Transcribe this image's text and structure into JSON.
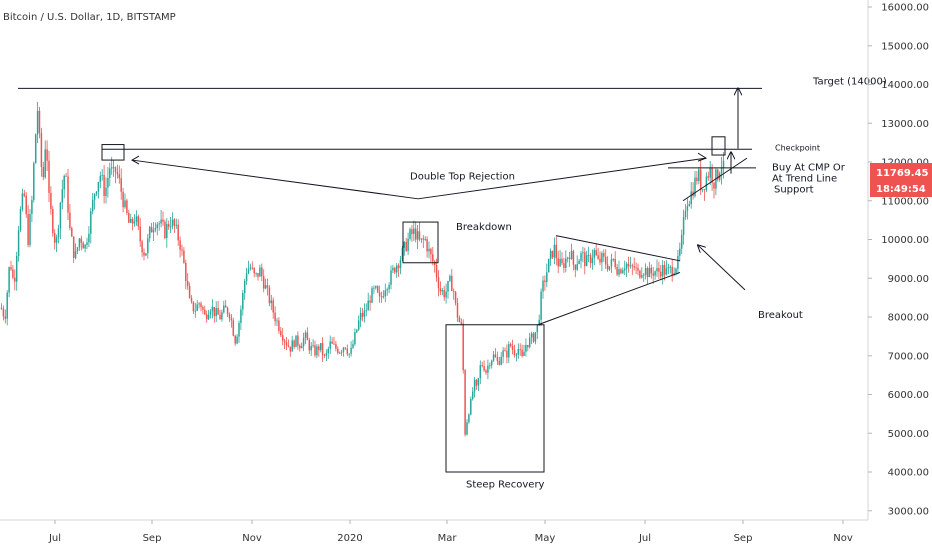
{
  "chart_data": {
    "type": "candlestick",
    "title": "Bitcoin / U.S. Dollar, 1D, BITSTAMP",
    "xlabel": "",
    "ylabel": "",
    "ylim": [
      2600,
      16400
    ],
    "x_ticks": [
      "Jul",
      "Sep",
      "Nov",
      "2020",
      "Mar",
      "May",
      "Jul",
      "Sep",
      "Nov"
    ],
    "y_ticks": [
      "16000.00",
      "15000.00",
      "14000.00",
      "13000.00",
      "12000.00",
      "11000.00",
      "10000.00",
      "9000.00",
      "8000.00",
      "7000.00",
      "6000.00",
      "5000.00",
      "4000.00",
      "3000.00"
    ],
    "y_tick_values": [
      16000,
      15000,
      14000,
      13000,
      12000,
      11000,
      10000,
      9000,
      8000,
      7000,
      6000,
      5000,
      4000,
      3000
    ],
    "up_color": "#26a69a",
    "down_color": "#ef5350",
    "last_price": "11769.45",
    "countdown": "18:49:54",
    "price_tag_color": "#ef5350",
    "path": [
      [
        0,
        8300
      ],
      [
        5,
        8000
      ],
      [
        10,
        9500
      ],
      [
        14,
        8800
      ],
      [
        19,
        10500
      ],
      [
        24,
        11200
      ],
      [
        28,
        10000
      ],
      [
        32,
        11000
      ],
      [
        35,
        12500
      ],
      [
        38,
        13500
      ],
      [
        40,
        12200
      ],
      [
        43,
        11500
      ],
      [
        46,
        12800
      ],
      [
        49,
        11000
      ],
      [
        52,
        10500
      ],
      [
        56,
        9800
      ],
      [
        60,
        10900
      ],
      [
        65,
        11800
      ],
      [
        70,
        10200
      ],
      [
        75,
        9500
      ],
      [
        80,
        10100
      ],
      [
        85,
        9800
      ],
      [
        90,
        10500
      ],
      [
        95,
        11300
      ],
      [
        100,
        11700
      ],
      [
        105,
        11200
      ],
      [
        110,
        11900
      ],
      [
        113,
        11600
      ],
      [
        116,
        11800
      ],
      [
        120,
        11400
      ],
      [
        125,
        10800
      ],
      [
        130,
        10300
      ],
      [
        135,
        10600
      ],
      [
        140,
        10000
      ],
      [
        145,
        9600
      ],
      [
        150,
        10200
      ],
      [
        155,
        10500
      ],
      [
        160,
        10400
      ],
      [
        165,
        10200
      ],
      [
        170,
        10500
      ],
      [
        175,
        10300
      ],
      [
        180,
        9900
      ],
      [
        185,
        9200
      ],
      [
        190,
        8300
      ],
      [
        195,
        8200
      ],
      [
        200,
        8400
      ],
      [
        205,
        8000
      ],
      [
        210,
        8300
      ],
      [
        215,
        8100
      ],
      [
        220,
        8000
      ],
      [
        225,
        8200
      ],
      [
        230,
        8100
      ],
      [
        235,
        7400
      ],
      [
        238,
        7700
      ],
      [
        242,
        8400
      ],
      [
        246,
        9200
      ],
      [
        250,
        9300
      ],
      [
        255,
        9000
      ],
      [
        260,
        9200
      ],
      [
        265,
        8800
      ],
      [
        270,
        8400
      ],
      [
        275,
        8000
      ],
      [
        280,
        7700
      ],
      [
        285,
        7400
      ],
      [
        290,
        7200
      ],
      [
        295,
        7400
      ],
      [
        300,
        7300
      ],
      [
        305,
        7500
      ],
      [
        310,
        7200
      ],
      [
        315,
        7100
      ],
      [
        320,
        7250
      ],
      [
        325,
        6900
      ],
      [
        330,
        7300
      ],
      [
        335,
        7200
      ],
      [
        340,
        7150
      ],
      [
        345,
        7300
      ],
      [
        350,
        7000
      ],
      [
        355,
        7500
      ],
      [
        360,
        8000
      ],
      [
        365,
        8100
      ],
      [
        370,
        8500
      ],
      [
        375,
        8700
      ],
      [
        380,
        8400
      ],
      [
        385,
        8800
      ],
      [
        390,
        9000
      ],
      [
        395,
        9300
      ],
      [
        400,
        9500
      ],
      [
        405,
        9800
      ],
      [
        410,
        10100
      ],
      [
        415,
        10200
      ],
      [
        420,
        9900
      ],
      [
        425,
        10000
      ],
      [
        430,
        9600
      ],
      [
        435,
        9300
      ],
      [
        440,
        8700
      ],
      [
        445,
        8600
      ],
      [
        450,
        8900
      ],
      [
        453,
        8800
      ],
      [
        456,
        8200
      ],
      [
        459,
        7900
      ],
      [
        462,
        7700
      ],
      [
        465,
        5000
      ],
      [
        468,
        5500
      ],
      [
        471,
        5800
      ],
      [
        474,
        6300
      ],
      [
        477,
        6100
      ],
      [
        480,
        6700
      ],
      [
        483,
        6800
      ],
      [
        486,
        6600
      ],
      [
        490,
        6900
      ],
      [
        494,
        7000
      ],
      [
        498,
        6800
      ],
      [
        502,
        7100
      ],
      [
        506,
        7000
      ],
      [
        510,
        7300
      ],
      [
        514,
        7100
      ],
      [
        518,
        7200
      ],
      [
        522,
        6900
      ],
      [
        526,
        7300
      ],
      [
        530,
        7400
      ],
      [
        534,
        7500
      ],
      [
        538,
        7800
      ],
      [
        542,
        8700
      ],
      [
        546,
        9100
      ],
      [
        550,
        9500
      ],
      [
        554,
        9800
      ],
      [
        558,
        9400
      ],
      [
        562,
        9300
      ],
      [
        566,
        9500
      ],
      [
        570,
        9700
      ],
      [
        574,
        9300
      ],
      [
        578,
        9500
      ],
      [
        582,
        9600
      ],
      [
        586,
        9400
      ],
      [
        590,
        9500
      ],
      [
        594,
        9700
      ],
      [
        598,
        9400
      ],
      [
        602,
        9500
      ],
      [
        606,
        9400
      ],
      [
        610,
        9300
      ],
      [
        614,
        9500
      ],
      [
        618,
        9200
      ],
      [
        622,
        9300
      ],
      [
        626,
        9400
      ],
      [
        630,
        9200
      ],
      [
        634,
        9300
      ],
      [
        638,
        9100
      ],
      [
        642,
        9250
      ],
      [
        646,
        9200
      ],
      [
        650,
        9100
      ],
      [
        654,
        9200
      ],
      [
        658,
        9150
      ],
      [
        662,
        9250
      ],
      [
        666,
        9150
      ],
      [
        670,
        9200
      ],
      [
        674,
        9300
      ],
      [
        678,
        9400
      ],
      [
        682,
        10000
      ],
      [
        686,
        11000
      ],
      [
        690,
        11100
      ],
      [
        694,
        11400
      ],
      [
        698,
        11700
      ],
      [
        702,
        11300
      ],
      [
        706,
        11600
      ],
      [
        710,
        11800
      ],
      [
        714,
        11500
      ],
      [
        718,
        11700
      ],
      [
        721,
        12000
      ],
      [
        724,
        11769
      ]
    ],
    "annotations": [
      {
        "text": "Target (14000)",
        "x": 813,
        "y": 14000
      },
      {
        "text": "Checkpoint",
        "x": 775,
        "y": 12300
      },
      {
        "text": "Buy At CMP Or",
        "x": 772,
        "y": 11780
      },
      {
        "text": "At Trend Line",
        "x": 772,
        "y": 11500
      },
      {
        "text": "Support",
        "x": 774,
        "y": 11210
      },
      {
        "text": "Double Top Rejection",
        "x": 410,
        "y": 11550
      },
      {
        "text": "Breakdown",
        "x": 456,
        "y": 10250
      },
      {
        "text": "Breakout",
        "x": 758,
        "y": 7980
      },
      {
        "text": "Steep Recovery",
        "x": 466,
        "y": 3600
      }
    ],
    "hlines": [
      {
        "name": "target-line",
        "y": 13900,
        "x1": 18,
        "x2": 762
      },
      {
        "name": "checkpoint-line",
        "y": 12330,
        "x1": 102,
        "x2": 752
      },
      {
        "name": "buy-line",
        "y": 11850,
        "x1": 668,
        "x2": 756
      }
    ],
    "trendlines": [
      {
        "name": "double-top-line-left",
        "x1": 132,
        "y1": 12050,
        "x2": 418,
        "y2": 11050
      },
      {
        "name": "double-top-line-right",
        "x1": 418,
        "y1": 11050,
        "x2": 706,
        "y2": 12100
      },
      {
        "name": "triangle-upper-line",
        "x1": 556,
        "y1": 10100,
        "x2": 680,
        "y2": 9450
      },
      {
        "name": "triangle-lower-line",
        "x1": 538,
        "y1": 7800,
        "x2": 680,
        "y2": 9150
      },
      {
        "name": "rising-support-line",
        "x1": 683,
        "y1": 11000,
        "x2": 747,
        "y2": 12100
      },
      {
        "name": "breakout-arrow",
        "x1": 745,
        "y1": 8700,
        "x2": 698,
        "y2": 9850,
        "arrow": true
      },
      {
        "name": "target-arrow",
        "x1": 738,
        "y1": 12350,
        "x2": 738,
        "y2": 13900,
        "arrow": true
      }
    ],
    "boxes": [
      {
        "name": "double-top-box",
        "x1": 102,
        "x2": 124,
        "y1": 12450,
        "y2": 12050
      },
      {
        "name": "breakdown-box",
        "x1": 403,
        "x2": 438,
        "y1": 10450,
        "y2": 9400
      },
      {
        "name": "steep-recovery-box",
        "x1": 446,
        "x2": 544,
        "y1": 7800,
        "y2": 4000
      },
      {
        "name": "checkpoint-box",
        "x1": 712,
        "x2": 725,
        "y1": 12650,
        "y2": 12180
      }
    ]
  }
}
